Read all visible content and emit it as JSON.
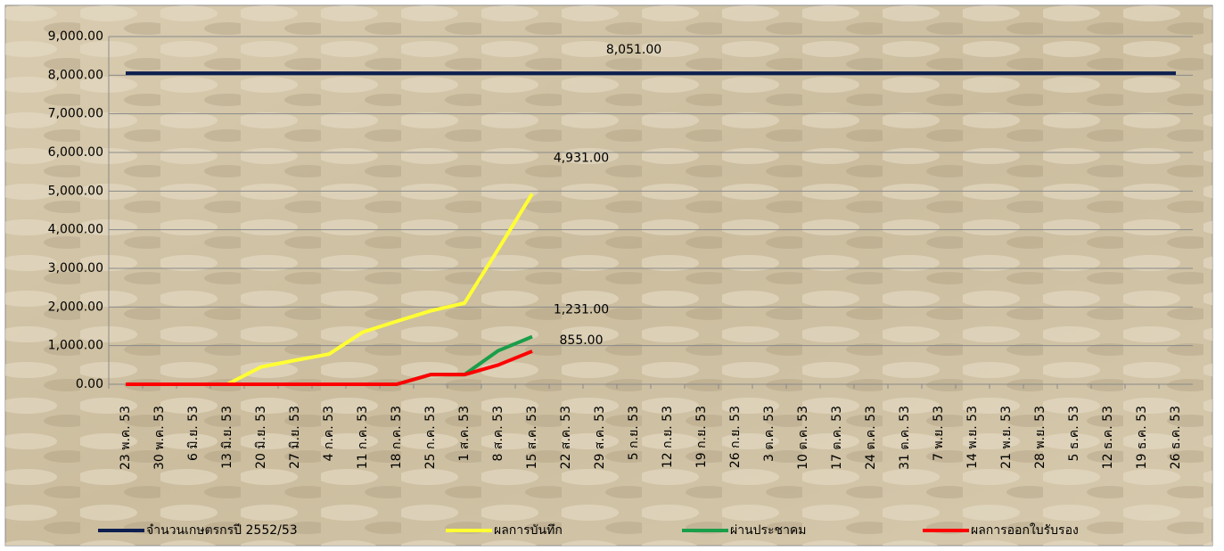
{
  "chart_data": {
    "type": "line",
    "categories": [
      "23 พ.ค. 53",
      "30 พ.ค. 53",
      "6 มิ.ย. 53",
      "13 มิ.ย. 53",
      "20 มิ.ย. 53",
      "27 มิ.ย. 53",
      "4 ก.ค. 53",
      "11 ก.ค. 53",
      "18 ก.ค. 53",
      "25 ก.ค. 53",
      "1 ส.ค. 53",
      "8 ส.ค. 53",
      "15 ส.ค. 53",
      "22 ส.ค. 53",
      "29 ส.ค. 53",
      "5 ก.ย. 53",
      "12 ก.ย. 53",
      "19 ก.ย. 53",
      "26 ก.ย. 53",
      "3 ต.ค. 53",
      "10 ต.ค. 53",
      "17 ต.ค. 53",
      "24 ต.ค. 53",
      "31 ต.ค. 53",
      "7 พ.ย. 53",
      "14 พ.ย. 53",
      "21 พ.ย. 53",
      "28 พ.ย. 53",
      "5 ธ.ค. 53",
      "12 ธ.ค. 53",
      "19 ธ.ค. 53",
      "26 ธ.ค. 53"
    ],
    "series": [
      {
        "name": "จำนวนเกษตรกรปี  2552/53",
        "color": "#0d1f4f",
        "values": [
          8051,
          8051,
          8051,
          8051,
          8051,
          8051,
          8051,
          8051,
          8051,
          8051,
          8051,
          8051,
          8051,
          8051,
          8051,
          8051,
          8051,
          8051,
          8051,
          8051,
          8051,
          8051,
          8051,
          8051,
          8051,
          8051,
          8051,
          8051,
          8051,
          8051,
          8051,
          8051
        ],
        "value_labels": [
          null,
          null,
          null,
          null,
          null,
          null,
          null,
          null,
          null,
          null,
          null,
          null,
          null,
          null,
          null,
          "8,051.00",
          null,
          null,
          null,
          null,
          null,
          null,
          null,
          null,
          null,
          null,
          null,
          null,
          null,
          null,
          null,
          null
        ]
      },
      {
        "name": "ผลการบันทึก",
        "color": "#ffff33",
        "values": [
          0,
          0,
          0,
          0,
          450,
          620,
          780,
          1350,
          1630,
          1900,
          2100,
          3500,
          4931,
          null,
          null,
          null,
          null,
          null,
          null,
          null,
          null,
          null,
          null,
          null,
          null,
          null,
          null,
          null,
          null,
          null,
          null,
          null
        ],
        "value_labels": [
          null,
          null,
          null,
          null,
          null,
          null,
          null,
          null,
          null,
          null,
          null,
          null,
          "4,931.00",
          null,
          null,
          null,
          null,
          null,
          null,
          null,
          null,
          null,
          null,
          null,
          null,
          null,
          null,
          null,
          null,
          null,
          null,
          null
        ]
      },
      {
        "name": "ผ่านประชาคม",
        "color": "#1a9e4a",
        "values": [
          0,
          0,
          0,
          0,
          0,
          0,
          0,
          0,
          0,
          250,
          250,
          870,
          1231,
          null,
          null,
          null,
          null,
          null,
          null,
          null,
          null,
          null,
          null,
          null,
          null,
          null,
          null,
          null,
          null,
          null,
          null,
          null
        ],
        "value_labels": [
          null,
          null,
          null,
          null,
          null,
          null,
          null,
          null,
          null,
          null,
          null,
          null,
          "1,231.00",
          null,
          null,
          null,
          null,
          null,
          null,
          null,
          null,
          null,
          null,
          null,
          null,
          null,
          null,
          null,
          null,
          null,
          null,
          null
        ]
      },
      {
        "name": "ผลการออกใบรับรอง",
        "color": "#ff0000",
        "values": [
          0,
          0,
          0,
          0,
          0,
          0,
          0,
          0,
          0,
          250,
          250,
          500,
          855,
          null,
          null,
          null,
          null,
          null,
          null,
          null,
          null,
          null,
          null,
          null,
          null,
          null,
          null,
          null,
          null,
          null,
          null,
          null
        ],
        "value_labels": [
          null,
          null,
          null,
          null,
          null,
          null,
          null,
          null,
          null,
          null,
          null,
          null,
          "855.00",
          null,
          null,
          null,
          null,
          null,
          null,
          null,
          null,
          null,
          null,
          null,
          null,
          null,
          null,
          null,
          null,
          null,
          null,
          null
        ]
      }
    ],
    "ylim": [
      0,
      9000
    ],
    "yticks": [
      {
        "value": 0,
        "label": "0.00"
      },
      {
        "value": 1000,
        "label": "1,000.00"
      },
      {
        "value": 2000,
        "label": "2,000.00"
      },
      {
        "value": 3000,
        "label": "3,000.00"
      },
      {
        "value": 4000,
        "label": "4,000.00"
      },
      {
        "value": 5000,
        "label": "5,000.00"
      },
      {
        "value": 6000,
        "label": "6,000.00"
      },
      {
        "value": 7000,
        "label": "7,000.00"
      },
      {
        "value": 8000,
        "label": "8,000.00"
      },
      {
        "value": 9000,
        "label": "9,000.00"
      }
    ],
    "grid": true,
    "legend": "bottom"
  }
}
